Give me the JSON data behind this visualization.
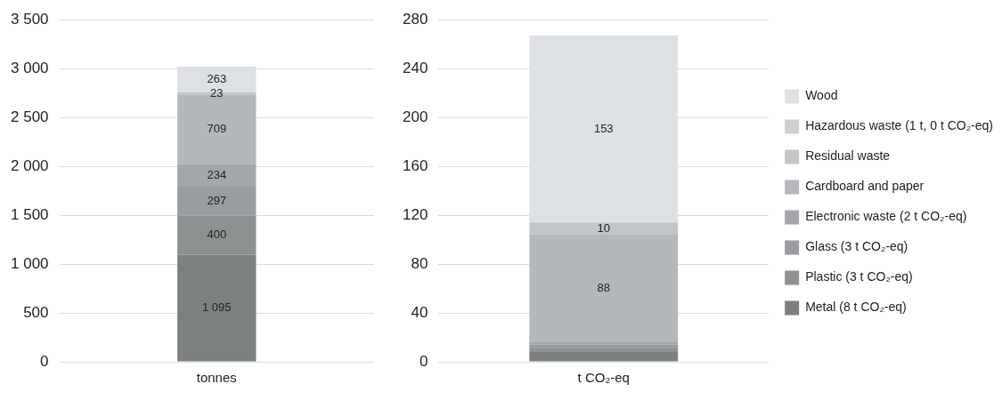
{
  "chart_data": [
    {
      "type": "bar",
      "stacked": true,
      "categories": [
        "tonnes"
      ],
      "ylim": [
        0,
        3500
      ],
      "yticks": [
        0,
        500,
        {
          "value": 1000,
          "label": "1 000"
        },
        {
          "value": 1500,
          "label": "1 500"
        },
        {
          "value": 2000,
          "label": "2 000"
        },
        {
          "value": 2500,
          "label": "2 500"
        },
        {
          "value": 3000,
          "label": "3 000"
        },
        {
          "value": 3500,
          "label": "3 500"
        }
      ],
      "grid": "y",
      "legend": false,
      "series": [
        {
          "color": "#7d8081",
          "values": [
            1095
          ],
          "value_labels": [
            "1 095"
          ]
        },
        {
          "color": "#8e9192",
          "values": [
            400
          ],
          "value_labels": [
            "400"
          ]
        },
        {
          "color": "#9a9d9f",
          "values": [
            297
          ],
          "value_labels": [
            "297"
          ]
        },
        {
          "color": "#a4a7aa",
          "values": [
            234
          ],
          "value_labels": [
            "234"
          ]
        },
        {
          "color": "#b5b8bb",
          "values": [
            709
          ],
          "value_labels": [
            "709"
          ]
        },
        {
          "color": "#c3c6c9",
          "values": [
            23
          ],
          "value_labels": [
            "23"
          ]
        },
        {
          "color": "#cdd0d3",
          "values": [
            1
          ],
          "value_labels": [
            null
          ]
        },
        {
          "color": "#dde1e4",
          "values": [
            263
          ],
          "value_labels": [
            "263"
          ]
        }
      ]
    },
    {
      "type": "bar",
      "stacked": true,
      "categories": [
        "t CO₂-eq"
      ],
      "ylim": [
        0,
        280
      ],
      "yticks": [
        0,
        40,
        80,
        120,
        160,
        200,
        240,
        280
      ],
      "grid": "y",
      "legend": "right",
      "series": [
        {
          "name": "Metal (8 t CO₂-eq)",
          "color": "#7d8081",
          "values": [
            8
          ],
          "value_labels": [
            null
          ]
        },
        {
          "name": "Plastic (3 t CO₂-eq)",
          "color": "#8e9192",
          "values": [
            3
          ],
          "value_labels": [
            null
          ]
        },
        {
          "name": "Glass (3 t CO₂-eq)",
          "color": "#9a9d9f",
          "values": [
            3
          ],
          "value_labels": [
            null
          ]
        },
        {
          "name": "Electronic waste (2 t CO₂-eq)",
          "color": "#a4a7aa",
          "values": [
            2
          ],
          "value_labels": [
            null
          ]
        },
        {
          "name": "Cardboard and paper",
          "color": "#b5b8bb",
          "values": [
            88
          ],
          "value_labels": [
            "88"
          ]
        },
        {
          "name": "Residual waste",
          "color": "#c3c6c9",
          "values": [
            10
          ],
          "value_labels": [
            "10"
          ]
        },
        {
          "name": "Hazardous waste (1 t, 0 t CO₂-eq)",
          "color": "#cdd0d3",
          "values": [
            0
          ],
          "value_labels": [
            null
          ]
        },
        {
          "name": "Wood",
          "color": "#dde1e4",
          "values": [
            153
          ],
          "value_labels": [
            "153"
          ]
        }
      ]
    }
  ]
}
